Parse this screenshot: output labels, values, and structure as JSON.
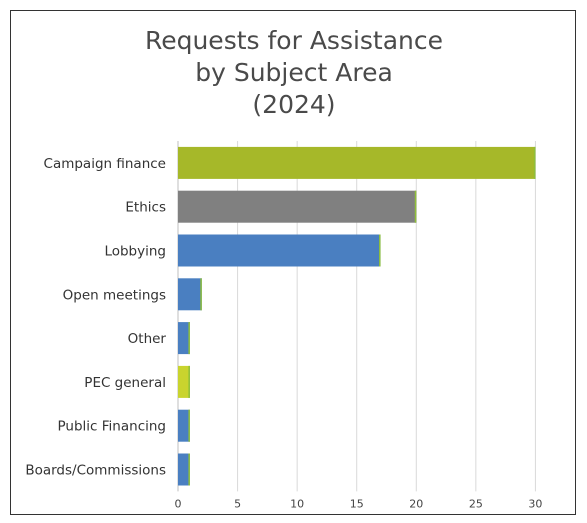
{
  "chart_data": {
    "type": "bar",
    "orientation": "horizontal",
    "title_lines": [
      "Requests for Assistance",
      "by Subject Area",
      "(2024)"
    ],
    "categories": [
      "Campaign finance",
      "Ethics",
      "Lobbying",
      "Open meetings",
      "Other",
      "PEC general",
      "Public Financing",
      "Boards/Commissions"
    ],
    "values": [
      30,
      20,
      17,
      2,
      1,
      1,
      1,
      1
    ],
    "bar_colors": [
      "#a6b829",
      "#808080",
      "#4a7fc1",
      "#4a7fc1",
      "#4a7fc1",
      "#c9d42e",
      "#4a7fc1",
      "#4a7fc1"
    ],
    "accent_edge_color": "#8fbf3a",
    "x_ticks": [
      "0",
      "5",
      "10",
      "15",
      "20",
      "25",
      "30",
      "35"
    ],
    "xlim": [
      0,
      35
    ],
    "grid": true,
    "legend": false
  }
}
